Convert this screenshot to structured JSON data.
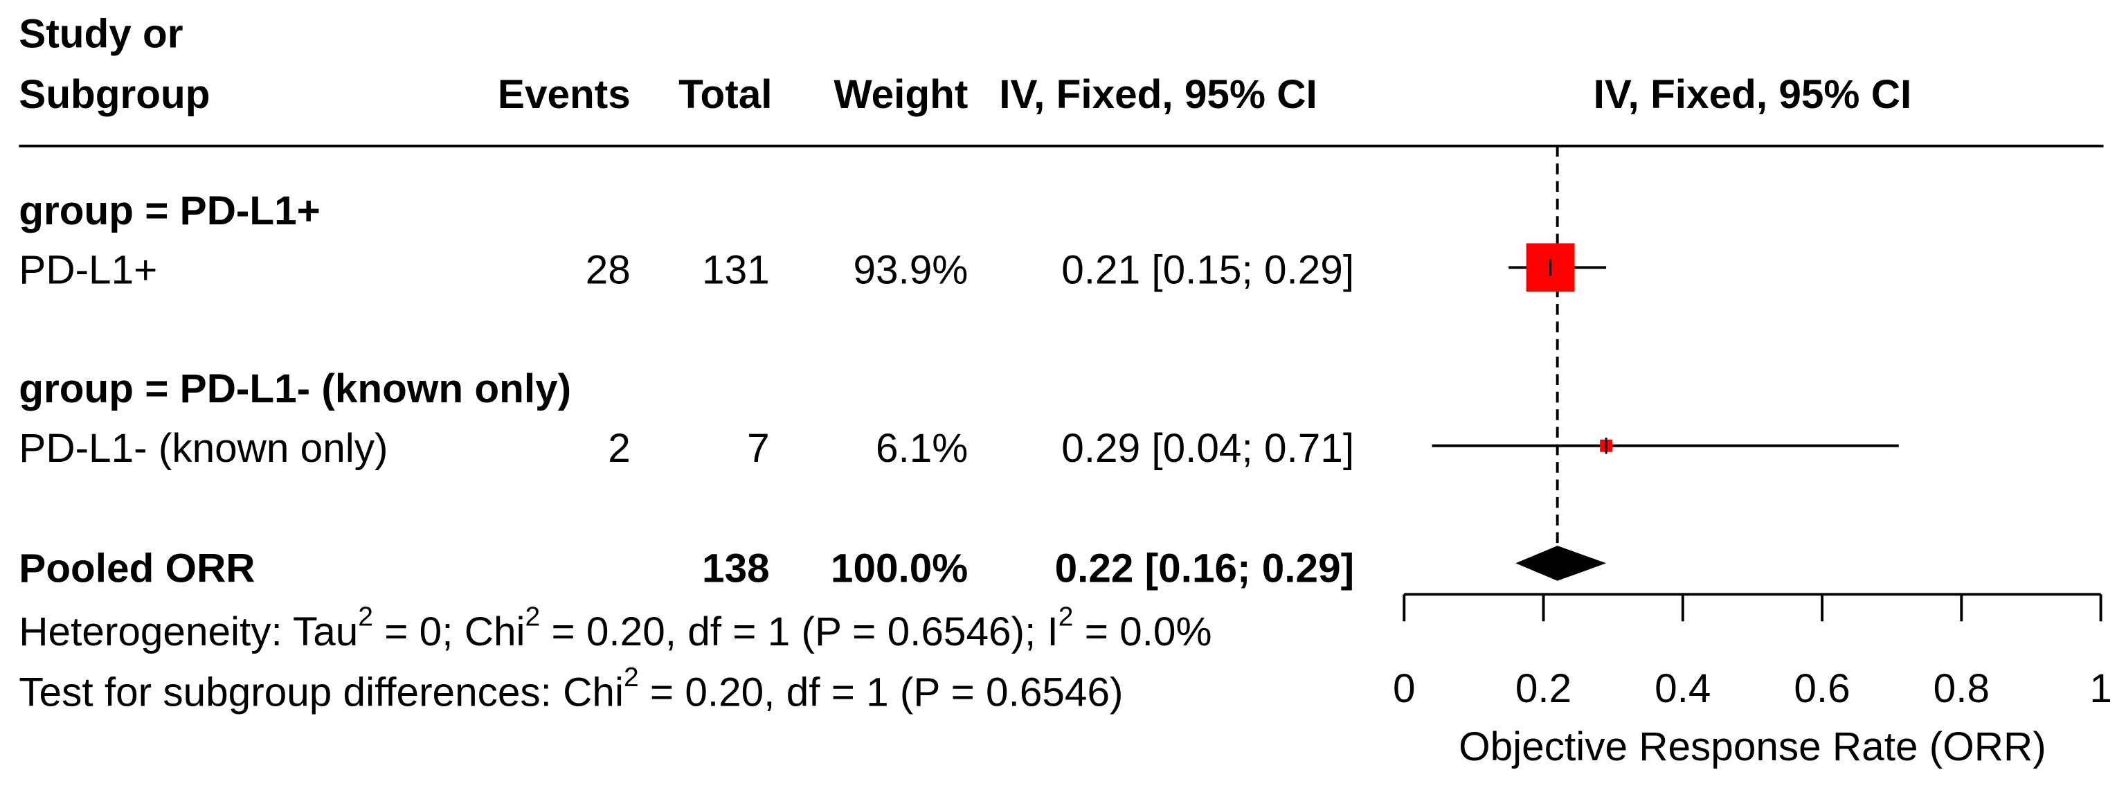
{
  "chart_data": {
    "type": "forest",
    "study_header": [
      "Study or",
      "Subgroup"
    ],
    "columns": {
      "events": "Events",
      "total": "Total",
      "weight": "Weight",
      "ci": "IV, Fixed, 95% CI"
    },
    "plot_header": "IV, Fixed, 95% CI",
    "groups": [
      {
        "label": "group = PD-L1+",
        "studies": [
          {
            "name": "PD-L1+",
            "events": 28,
            "total": 131,
            "weight": 93.9,
            "weight_label": "93.9%",
            "estimate": 0.21,
            "ci": [
              0.15,
              0.29
            ],
            "ci_label": "0.21 [0.15; 0.29]"
          }
        ]
      },
      {
        "label": "group = PD-L1- (known only)",
        "studies": [
          {
            "name": "PD-L1- (known only)",
            "events": 2,
            "total": 7,
            "weight": 6.1,
            "weight_label": "6.1%",
            "estimate": 0.29,
            "ci": [
              0.04,
              0.71
            ],
            "ci_label": "0.29 [0.04; 0.71]"
          }
        ]
      }
    ],
    "pooled": {
      "name": "Pooled ORR",
      "total": 138,
      "weight": 100.0,
      "weight_label": "100.0%",
      "estimate": 0.22,
      "ci": [
        0.16,
        0.29
      ],
      "ci_label": "0.22 [0.16; 0.29]"
    },
    "heterogeneity": [
      "Heterogeneity: Tau",
      "2",
      " = 0; Chi",
      "2",
      " = 0.20, df = 1 (P = 0.6546); I",
      "2",
      " = 0.0%"
    ],
    "subgroup_test": [
      "Test for subgroup differences: Chi",
      "2",
      " = 0.20, df = 1 (P = 0.6546)"
    ],
    "xlabel": "Objective Response Rate (ORR)",
    "xlim": [
      0,
      1
    ],
    "xticks": [
      0,
      0.2,
      0.4,
      0.6,
      0.8,
      1
    ],
    "square_color": "#ff0000",
    "diamond_color": "#000000"
  }
}
